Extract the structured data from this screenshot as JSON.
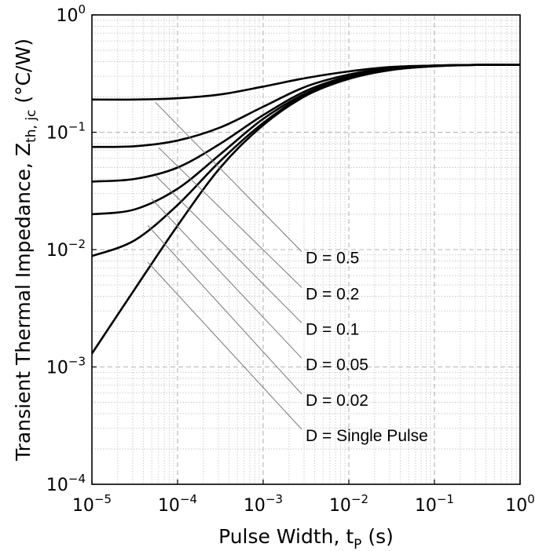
{
  "chart_data": {
    "type": "line",
    "xlabel": "Pulse Width, t",
    "xlabel_sub": "P",
    "xlabel_unit": " (s)",
    "ylabel": "Transient Thermal Impedance, Z",
    "ylabel_sub": "th, jc",
    "ylabel_unit": " (°C/W)",
    "xscale": "log",
    "yscale": "log",
    "xlim": [
      1e-05,
      1
    ],
    "ylim": [
      0.0001,
      1
    ],
    "grid": true,
    "x_ticks": [
      {
        "base": "10",
        "exp": "−5",
        "value": 1e-05
      },
      {
        "base": "10",
        "exp": "−4",
        "value": 0.0001
      },
      {
        "base": "10",
        "exp": "−3",
        "value": 0.001
      },
      {
        "base": "10",
        "exp": "−2",
        "value": 0.01
      },
      {
        "base": "10",
        "exp": "−1",
        "value": 0.1
      },
      {
        "base": "10",
        "exp": "0",
        "value": 1
      }
    ],
    "y_ticks": [
      {
        "base": "10",
        "exp": "−4",
        "value": 0.0001
      },
      {
        "base": "10",
        "exp": "−3",
        "value": 0.001
      },
      {
        "base": "10",
        "exp": "−2",
        "value": 0.01
      },
      {
        "base": "10",
        "exp": "−1",
        "value": 0.1
      },
      {
        "base": "10",
        "exp": "0",
        "value": 1
      }
    ],
    "series": [
      {
        "name": "D = 0.5",
        "x": [
          1e-05,
          3.16e-05,
          0.0001,
          0.000316,
          0.001,
          0.00316,
          0.01,
          0.0316,
          0.1,
          0.316,
          1
        ],
        "y": [
          0.19,
          0.19,
          0.195,
          0.21,
          0.245,
          0.29,
          0.33,
          0.36,
          0.37,
          0.375,
          0.375
        ]
      },
      {
        "name": "D = 0.2",
        "x": [
          1e-05,
          3.16e-05,
          0.0001,
          0.000316,
          0.001,
          0.00316,
          0.01,
          0.0316,
          0.1,
          0.316,
          1
        ],
        "y": [
          0.075,
          0.076,
          0.085,
          0.11,
          0.165,
          0.245,
          0.31,
          0.355,
          0.37,
          0.375,
          0.375
        ]
      },
      {
        "name": "D = 0.1",
        "x": [
          1e-05,
          3.16e-05,
          0.0001,
          0.000316,
          0.001,
          0.00316,
          0.01,
          0.0316,
          0.1,
          0.316,
          1
        ],
        "y": [
          0.038,
          0.04,
          0.05,
          0.08,
          0.14,
          0.225,
          0.3,
          0.35,
          0.37,
          0.375,
          0.375
        ]
      },
      {
        "name": "D = 0.05",
        "x": [
          1e-05,
          3.16e-05,
          0.0001,
          0.000316,
          0.001,
          0.00316,
          0.01,
          0.0316,
          0.1,
          0.316,
          1
        ],
        "y": [
          0.02,
          0.022,
          0.033,
          0.065,
          0.13,
          0.215,
          0.295,
          0.345,
          0.368,
          0.375,
          0.375
        ]
      },
      {
        "name": "D = 0.02",
        "x": [
          1e-05,
          3.16e-05,
          0.0001,
          0.000316,
          0.001,
          0.00316,
          0.01,
          0.0316,
          0.1,
          0.316,
          1
        ],
        "y": [
          0.0088,
          0.012,
          0.024,
          0.057,
          0.12,
          0.21,
          0.29,
          0.34,
          0.366,
          0.375,
          0.375
        ]
      },
      {
        "name": "D = Single Pulse",
        "x": [
          1e-05,
          3.16e-05,
          0.0001,
          0.000316,
          0.001,
          0.00316,
          0.01,
          0.0316,
          0.1,
          0.316,
          1
        ],
        "y": [
          0.0013,
          0.0046,
          0.016,
          0.05,
          0.115,
          0.205,
          0.285,
          0.34,
          0.365,
          0.375,
          0.375
        ]
      }
    ],
    "annotations": [
      {
        "text": "D = 0.5",
        "text_x": 0.003,
        "text_y": 0.0085,
        "from_x": 5.5e-05,
        "from_y": 0.18
      },
      {
        "text": "D = 0.2",
        "text_x": 0.003,
        "text_y": 0.0042,
        "from_x": 6e-05,
        "from_y": 0.074
      },
      {
        "text": "D = 0.1",
        "text_x": 0.003,
        "text_y": 0.0021,
        "from_x": 5.5e-05,
        "from_y": 0.043
      },
      {
        "text": "D = 0.05",
        "text_x": 0.003,
        "text_y": 0.00105,
        "from_x": 5e-05,
        "from_y": 0.027
      },
      {
        "text": "D = 0.02",
        "text_x": 0.003,
        "text_y": 0.00052,
        "from_x": 4.5e-05,
        "from_y": 0.016
      },
      {
        "text": "D = Single Pulse",
        "text_x": 0.003,
        "text_y": 0.00026,
        "from_x": 4.5e-05,
        "from_y": 0.0078
      }
    ]
  }
}
